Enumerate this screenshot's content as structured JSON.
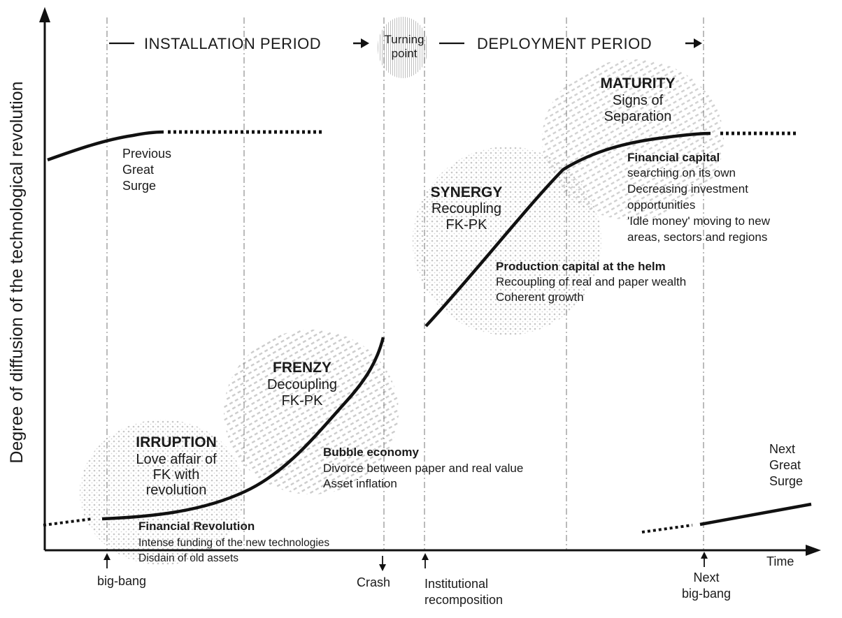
{
  "y_axis_label": "Degree of diffusion of the technological revolution",
  "x_axis_label": "Time",
  "periods": {
    "installation": "INSTALLATION PERIOD",
    "turning_point": [
      "Turning",
      "point"
    ],
    "deployment": "DEPLOYMENT PERIOD"
  },
  "previous_surge": [
    "Previous",
    "Great",
    "Surge"
  ],
  "next_surge": [
    "Next",
    "Great",
    "Surge"
  ],
  "phases": {
    "irruption": {
      "title": "IRRUPTION",
      "lines": [
        "Love affair of",
        "FK with",
        "revolution"
      ]
    },
    "frenzy": {
      "title": "FRENZY",
      "lines": [
        "Decoupling",
        "FK-PK"
      ]
    },
    "synergy": {
      "title": "SYNERGY",
      "lines": [
        "Recoupling",
        "FK-PK"
      ]
    },
    "maturity": {
      "title": "MATURITY",
      "lines": [
        "Signs of",
        "Separation"
      ]
    }
  },
  "notes": {
    "financial_revolution": {
      "head": "Financial Revolution",
      "lines": [
        "Intense funding of the new technologies",
        "Disdain of old assets"
      ]
    },
    "bubble_economy": {
      "head": "Bubble economy",
      "lines": [
        "Divorce between paper and real value",
        "Asset inflation"
      ]
    },
    "production_capital": {
      "head": "Production capital at the helm",
      "lines": [
        "Recoupling of real and paper wealth",
        "Coherent growth"
      ]
    },
    "financial_capital": {
      "head": "Financial capital",
      "lines": [
        "searching on its own",
        "Decreasing investment",
        "opportunities",
        "'Idle money' moving to new",
        "areas, sectors and regions"
      ]
    }
  },
  "events": {
    "big_bang": [
      "big-bang"
    ],
    "crash": [
      "Crash"
    ],
    "institutional": [
      "Institutional",
      "recomposition"
    ],
    "next_big_bang": [
      "Next",
      "big-bang"
    ]
  }
}
